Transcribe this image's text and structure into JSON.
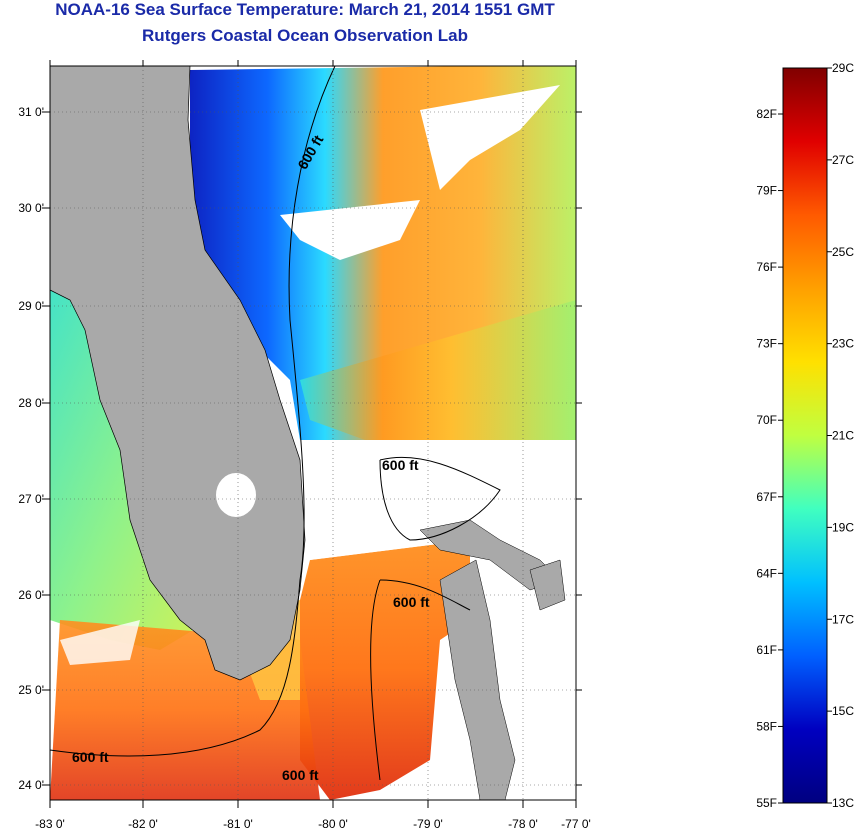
{
  "title": {
    "line1": "NOAA-16 Sea Surface Temperature:  March 21, 2014 1551 GMT",
    "line2": "Rutgers Coastal Ocean Observation Lab"
  },
  "axes": {
    "lon_labels": [
      "-83 0'",
      "-82 0'",
      "-81 0'",
      "-80 0'",
      "-79 0'",
      "-78 0'",
      "-77 0'"
    ],
    "lat_labels": [
      "31 0'",
      "30 0'",
      "29 0'",
      "28 0'",
      "27 0'",
      "26 0'",
      "25 0'",
      "24 0'"
    ]
  },
  "contour_labels": [
    "600 ft",
    "600 ft",
    "600 ft",
    "600 ft",
    "600 ft"
  ],
  "colorbar": {
    "celsius_labels": [
      "29C",
      "27C",
      "25C",
      "23C",
      "21C",
      "19C",
      "17C",
      "15C",
      "13C"
    ],
    "fahrenheit_labels": [
      "82F",
      "79F",
      "76F",
      "73F",
      "70F",
      "67F",
      "64F",
      "61F",
      "58F",
      "55F"
    ],
    "colors": [
      "#800000",
      "#e00000",
      "#ff5a00",
      "#ffa000",
      "#ffe000",
      "#c0ff40",
      "#40ffc0",
      "#00c0ff",
      "#0060ff",
      "#0000c0",
      "#000080"
    ]
  },
  "colors": {
    "land": "#a9a9a9",
    "title": "#1a2aa8"
  }
}
